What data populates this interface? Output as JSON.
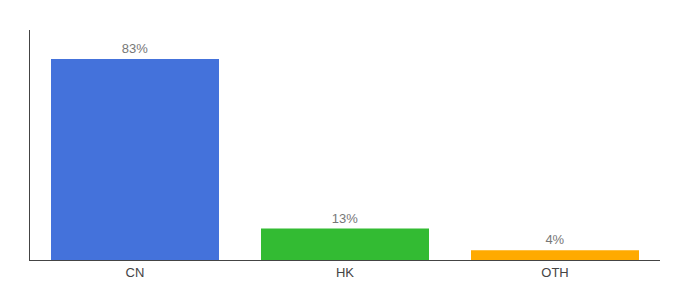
{
  "chart_data": {
    "type": "bar",
    "categories": [
      "CN",
      "HK",
      "OTH"
    ],
    "values": [
      83,
      13,
      4
    ],
    "value_labels": [
      "83%",
      "13%",
      "4%"
    ],
    "data_labels": true,
    "colors": [
      "#4472db",
      "#33bb33",
      "#ffaa00"
    ],
    "ylim": [
      0,
      95
    ],
    "grid": false,
    "tick_labels": "x"
  }
}
